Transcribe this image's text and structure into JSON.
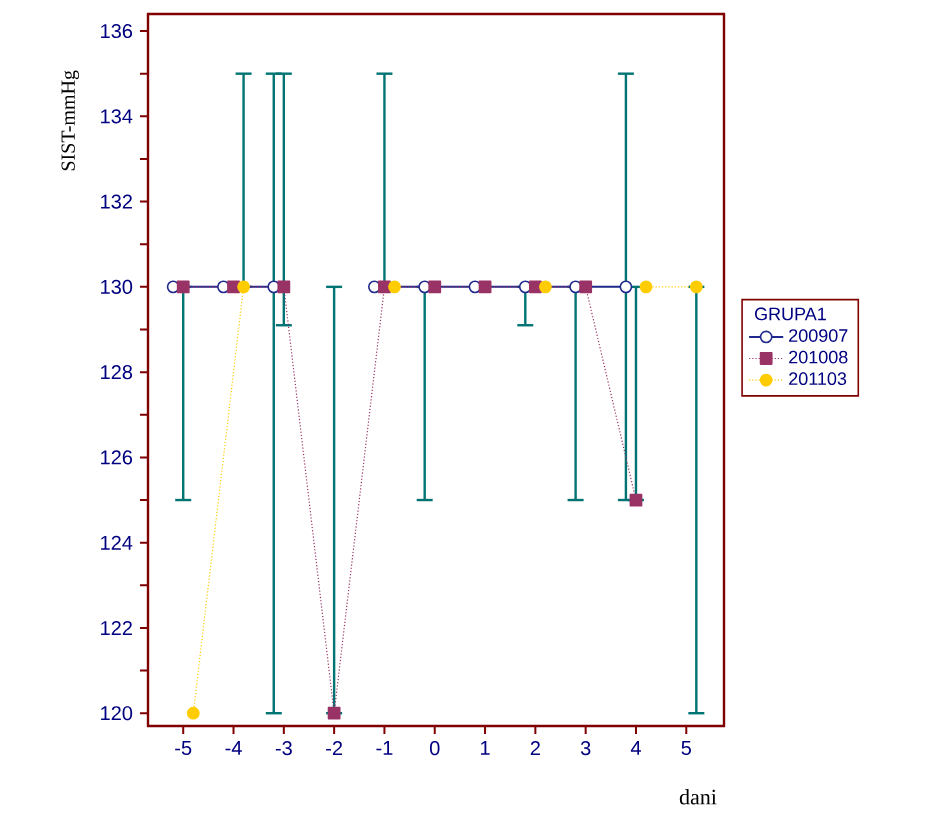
{
  "chart_data": {
    "type": "line",
    "xlabel": "dani",
    "ylabel": "SIST-mmHg",
    "legend_title": "GRUPA1",
    "xlim": [
      -5.7,
      5.75
    ],
    "ylim": [
      119.7,
      136.4
    ],
    "xticks": [
      -5,
      -4,
      -3,
      -2,
      -1,
      0,
      1,
      2,
      3,
      4,
      5
    ],
    "yticks": [
      120,
      {
        "value": 121,
        "label": null
      },
      122,
      {
        "value": 123,
        "label": null
      },
      124,
      {
        "value": 125,
        "label": null
      },
      126,
      {
        "value": 127,
        "label": null
      },
      128,
      {
        "value": 129,
        "label": null
      },
      130,
      {
        "value": 131,
        "label": null
      },
      132,
      {
        "value": 133,
        "label": null
      },
      134,
      {
        "value": 135,
        "label": null
      },
      136
    ],
    "grid": false,
    "legend": "right",
    "series": [
      {
        "name": "200907",
        "color": "#1f2a8c",
        "marker": "circle",
        "line_style": "solid",
        "x": [
          -5.2,
          -4.2,
          -3.2,
          -2.2,
          -1.2,
          -0.2,
          0.8,
          1.8,
          2.8,
          3.8
        ],
        "values": [
          130,
          130,
          130,
          null,
          130,
          130,
          130,
          130,
          130,
          130
        ],
        "errors": [
          null,
          null,
          [
            120,
            135
          ],
          null,
          null,
          [
            125,
            130
          ],
          null,
          [
            129.1,
            130
          ],
          [
            125,
            130
          ],
          [
            125,
            135
          ]
        ]
      },
      {
        "name": "201008",
        "color": "#993366",
        "marker": "square",
        "line_style": "dotted",
        "x": [
          -5,
          -4,
          -3,
          -2,
          -1,
          0,
          1,
          2,
          3,
          4
        ],
        "values": [
          130,
          130,
          130,
          120,
          130,
          130,
          130,
          130,
          130,
          125
        ],
        "errors": [
          [
            125,
            130
          ],
          null,
          [
            129.1,
            135
          ],
          [
            120,
            130
          ],
          [
            130,
            135
          ],
          null,
          null,
          null,
          null,
          [
            125,
            130
          ]
        ]
      },
      {
        "name": "201103",
        "color": "#ffcc00",
        "marker": "circle",
        "line_style": "dotted",
        "x": [
          -4.8,
          -3.8,
          -2.8,
          -1.8,
          -0.8,
          0.2,
          1.2,
          2.2,
          3.2,
          4.2,
          5.2
        ],
        "values": [
          120,
          130,
          null,
          null,
          130,
          null,
          null,
          130,
          null,
          130,
          130
        ],
        "errors": [
          null,
          [
            130,
            135
          ],
          null,
          null,
          null,
          null,
          null,
          null,
          null,
          null,
          [
            120,
            130
          ]
        ]
      }
    ]
  }
}
